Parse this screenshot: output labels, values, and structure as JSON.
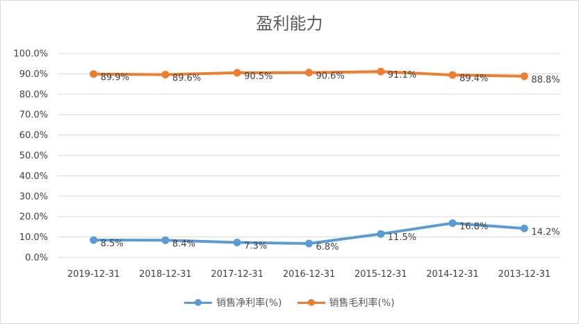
{
  "chart_data": {
    "type": "line",
    "title": "盈利能力",
    "categories": [
      "2019-12-31",
      "2018-12-31",
      "2017-12-31",
      "2016-12-31",
      "2015-12-31",
      "2014-12-31",
      "2013-12-31"
    ],
    "series": [
      {
        "name": "销售净利率(%)",
        "color": "#5b9bd5",
        "values": [
          8.5,
          8.4,
          7.3,
          6.8,
          11.5,
          16.8,
          14.2
        ],
        "labels": [
          "8.5%",
          "8.4%",
          "7.3%",
          "6.8%",
          "11.5%",
          "16.8%",
          "14.2%"
        ]
      },
      {
        "name": "销售毛利率(%)",
        "color": "#ed7d31",
        "values": [
          89.9,
          89.6,
          90.5,
          90.6,
          91.1,
          89.4,
          88.8
        ],
        "labels": [
          "89.9%",
          "89.6%",
          "90.5%",
          "90.6%",
          "91.1%",
          "89.4%",
          "88.8%"
        ]
      }
    ],
    "ylim": [
      0,
      100
    ],
    "y_ticks": [
      {
        "value": 0,
        "label": "0.0%"
      },
      {
        "value": 10,
        "label": "10.0%"
      },
      {
        "value": 20,
        "label": "20.0%"
      },
      {
        "value": 30,
        "label": "30.0%"
      },
      {
        "value": 40,
        "label": "40.0%"
      },
      {
        "value": 50,
        "label": "50.0%"
      },
      {
        "value": 60,
        "label": "60.0%"
      },
      {
        "value": 70,
        "label": "70.0%"
      },
      {
        "value": 80,
        "label": "80.0%"
      },
      {
        "value": 90,
        "label": "90.0%"
      },
      {
        "value": 100,
        "label": "100.0%"
      }
    ],
    "grid": true,
    "gridline_color": "#d9d9d9",
    "legend_position": "bottom"
  }
}
